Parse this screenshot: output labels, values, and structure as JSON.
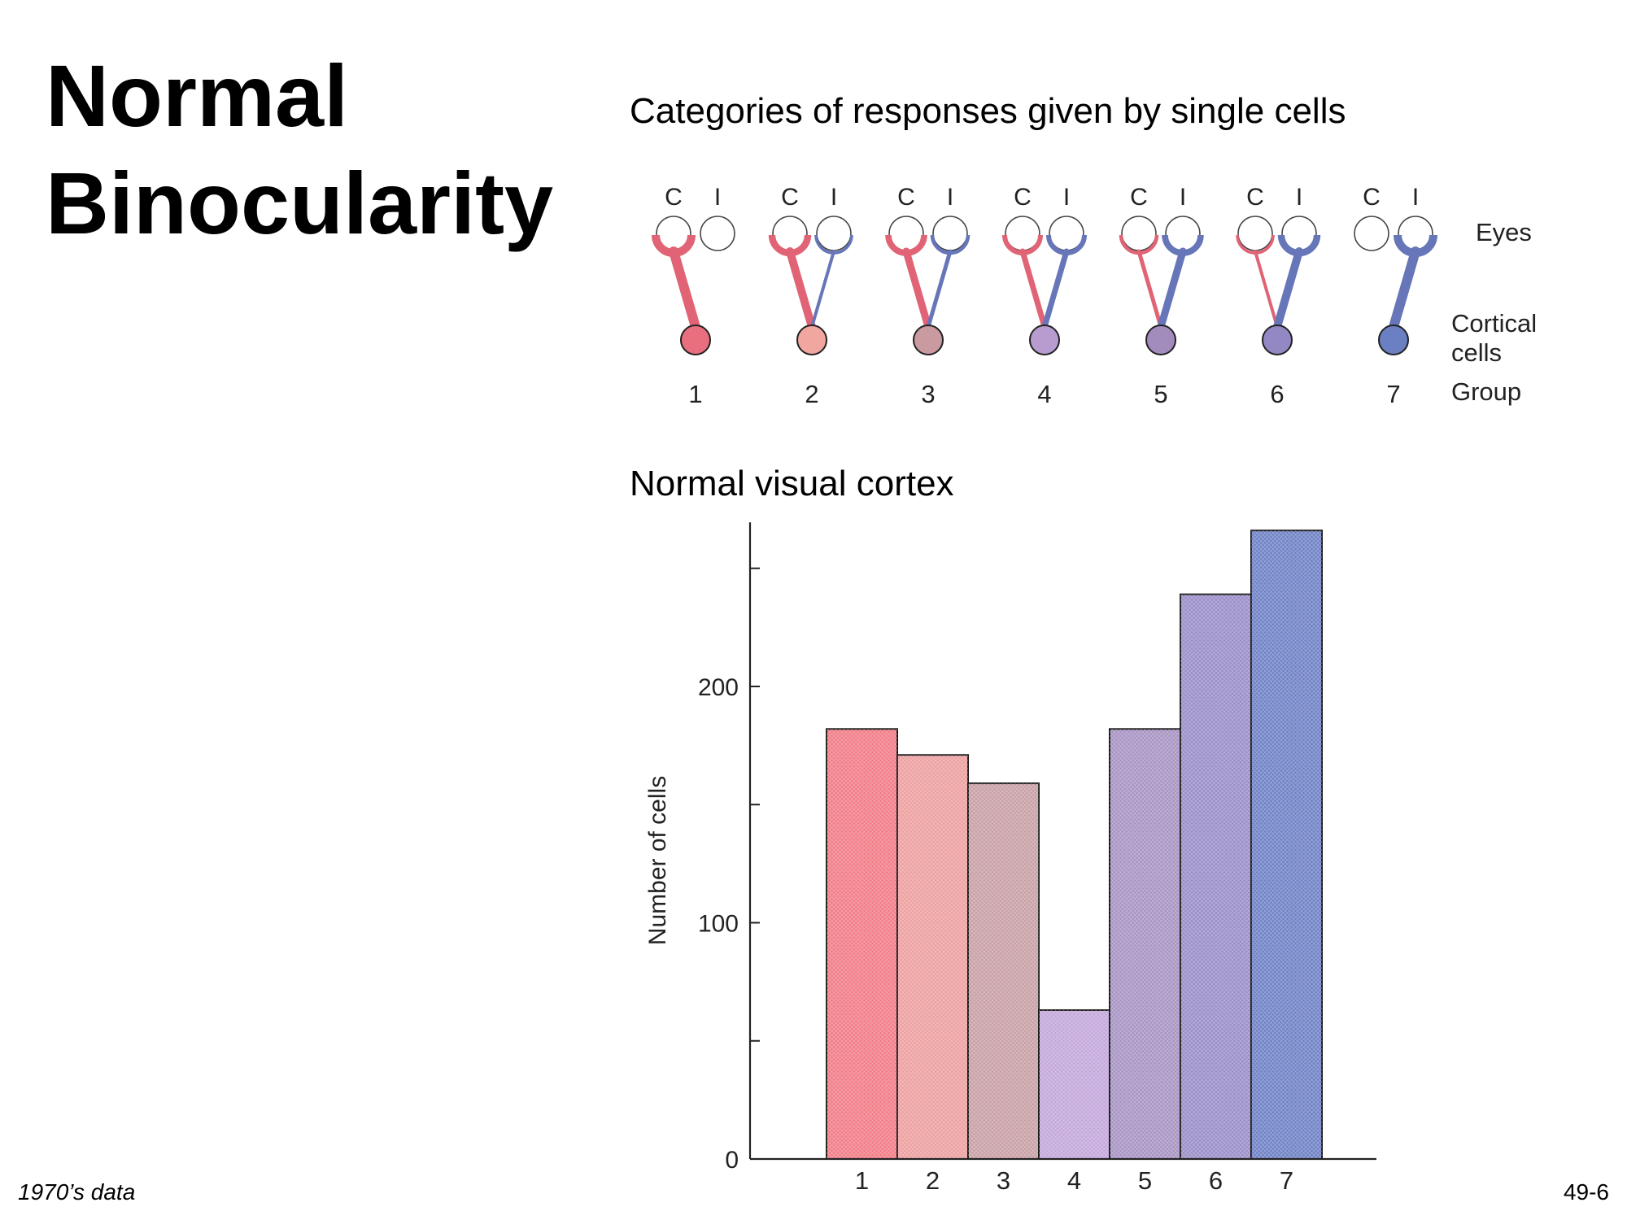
{
  "slide": {
    "title_line1": "Normal",
    "title_line2": "Binocularity",
    "footnote": "1970’s data",
    "page_number": "49-6"
  },
  "diagram": {
    "heading": "Categories of responses given by single cells",
    "eye_labels": [
      "C",
      "I"
    ],
    "eyes_label": "Eyes",
    "cells_label_line1": "Cortical",
    "cells_label_line2": "cells",
    "group_label": "Group",
    "groups": [
      {
        "group": "1",
        "contra": 1.0,
        "ipsi": 0.0,
        "color": "#ea6f7e"
      },
      {
        "group": "2",
        "contra": 0.8,
        "ipsi": 0.2,
        "color": "#f1a6a0"
      },
      {
        "group": "3",
        "contra": 0.7,
        "ipsi": 0.3,
        "color": "#c99a9f"
      },
      {
        "group": "4",
        "contra": 0.5,
        "ipsi": 0.5,
        "color": "#b99ccf"
      },
      {
        "group": "5",
        "contra": 0.3,
        "ipsi": 0.7,
        "color": "#a28bbd"
      },
      {
        "group": "6",
        "contra": 0.2,
        "ipsi": 0.8,
        "color": "#9488c4"
      },
      {
        "group": "7",
        "contra": 0.0,
        "ipsi": 1.0,
        "color": "#6b7fc3"
      }
    ],
    "colors": {
      "contra": "#e06475",
      "ipsi": "#6676b8"
    }
  },
  "chart_data": {
    "type": "bar",
    "title": "Normal visual cortex",
    "ylabel": "Number of cells",
    "xlabel": "",
    "categories": [
      "1",
      "2",
      "3",
      "4",
      "5",
      "6",
      "7"
    ],
    "values": [
      182,
      171,
      159,
      63,
      182,
      239,
      266
    ],
    "ylim": [
      0,
      266
    ],
    "yticks": [
      0,
      100,
      200
    ],
    "minor_yticks": [
      50,
      150,
      250
    ],
    "colors": [
      "#f17c87",
      "#eda0a0",
      "#c8a0a6",
      "#c3a7db",
      "#a894c4",
      "#9b8ec8",
      "#6f82c6"
    ],
    "legend": "none",
    "grid": false
  }
}
